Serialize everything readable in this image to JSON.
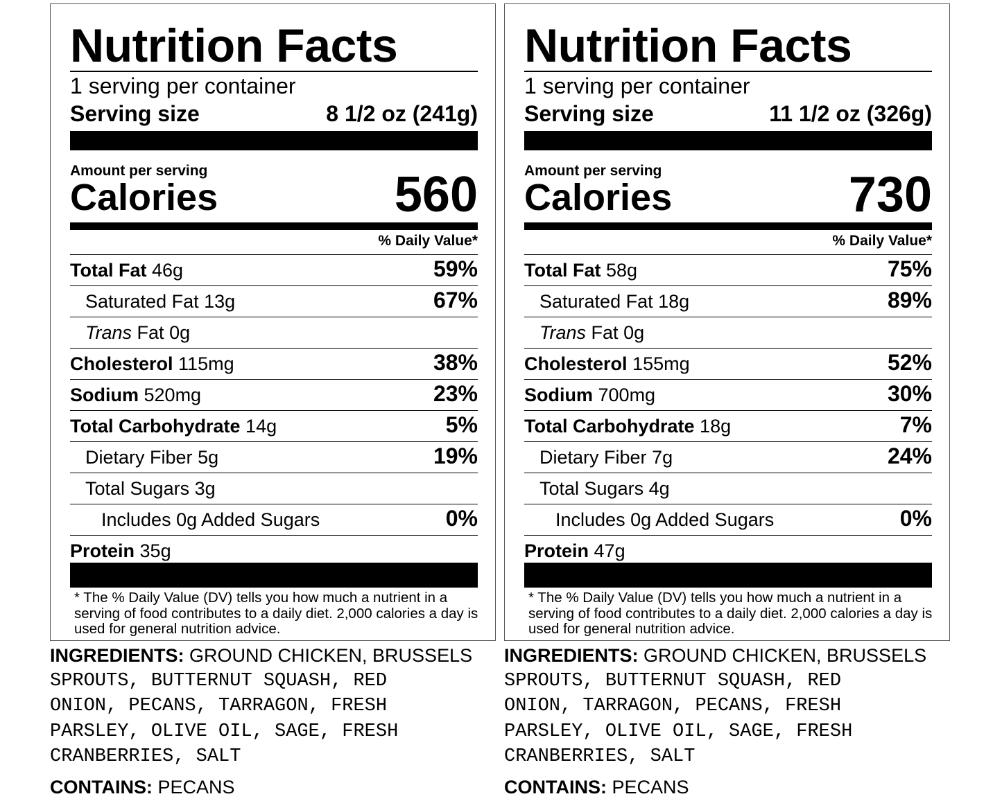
{
  "labels": [
    {
      "title": "Nutrition Facts",
      "servings_per_container": "1 serving per container",
      "serving_size_label": "Serving size",
      "serving_size_value": "8 1/2 oz (241g)",
      "amount_per_serving": "Amount per serving",
      "calories_label": "Calories",
      "calories_value": "560",
      "daily_value_header": "% Daily Value*",
      "nutrients": [
        {
          "name": "Total Fat",
          "amount": "46g",
          "dv": "59%"
        },
        {
          "name": "Saturated Fat",
          "amount": "13g",
          "dv": "67%"
        },
        {
          "name_italic": "Trans",
          "name": "Fat",
          "amount": "0g",
          "dv": ""
        },
        {
          "name": "Cholesterol",
          "amount": "115mg",
          "dv": "38%"
        },
        {
          "name": "Sodium",
          "amount": "520mg",
          "dv": "23%"
        },
        {
          "name": "Total Carbohydrate",
          "amount": "14g",
          "dv": "5%"
        },
        {
          "name": "Dietary Fiber",
          "amount": "5g",
          "dv": "19%"
        },
        {
          "name": "Total Sugars",
          "amount": "3g",
          "dv": ""
        },
        {
          "name": "Includes 0g Added Sugars",
          "amount": "",
          "dv": "0%"
        },
        {
          "name": "Protein",
          "amount": "35g",
          "dv": ""
        }
      ],
      "footnote": "* The % Daily Value (DV) tells you how much a nutrient in a serving of food contributes to a daily diet. 2,000 calories a day is used for general nutrition advice.",
      "ingredients_label": "INGREDIENTS:",
      "ingredients_first": "GROUND CHICKEN, BRUSSELS",
      "ingredients_rest": "SPROUTS, BUTTERNUT SQUASH, RED\nONION, PECANS, TARRAGON, FRESH\nPARSLEY, OLIVE OIL, SAGE, FRESH\nCRANBERRIES, SALT",
      "contains_label": "CONTAINS:",
      "contains_value": "PECANS"
    },
    {
      "title": "Nutrition Facts",
      "servings_per_container": "1 serving per container",
      "serving_size_label": "Serving size",
      "serving_size_value": "11 1/2 oz (326g)",
      "amount_per_serving": "Amount per serving",
      "calories_label": "Calories",
      "calories_value": "730",
      "daily_value_header": "% Daily Value*",
      "nutrients": [
        {
          "name": "Total Fat",
          "amount": "58g",
          "dv": "75%"
        },
        {
          "name": "Saturated Fat",
          "amount": "18g",
          "dv": "89%"
        },
        {
          "name_italic": "Trans",
          "name": "Fat",
          "amount": "0g",
          "dv": ""
        },
        {
          "name": "Cholesterol",
          "amount": "155mg",
          "dv": "52%"
        },
        {
          "name": "Sodium",
          "amount": "700mg",
          "dv": "30%"
        },
        {
          "name": "Total Carbohydrate",
          "amount": "18g",
          "dv": "7%"
        },
        {
          "name": "Dietary Fiber",
          "amount": "7g",
          "dv": "24%"
        },
        {
          "name": "Total Sugars",
          "amount": "4g",
          "dv": ""
        },
        {
          "name": "Includes 0g Added Sugars",
          "amount": "",
          "dv": "0%"
        },
        {
          "name": "Protein",
          "amount": "47g",
          "dv": ""
        }
      ],
      "footnote": "* The % Daily Value (DV) tells you how much a nutrient in a serving of food contributes to a daily diet. 2,000 calories a day is used for general nutrition advice.",
      "ingredients_label": "INGREDIENTS:",
      "ingredients_first": "GROUND CHICKEN, BRUSSELS",
      "ingredients_rest": "SPROUTS, BUTTERNUT SQUASH, RED\nONION, TARRAGON, PECANS, FRESH\nPARSLEY, OLIVE OIL, SAGE, FRESH\nCRANBERRIES, SALT",
      "contains_label": "CONTAINS:",
      "contains_value": "PECANS"
    }
  ]
}
